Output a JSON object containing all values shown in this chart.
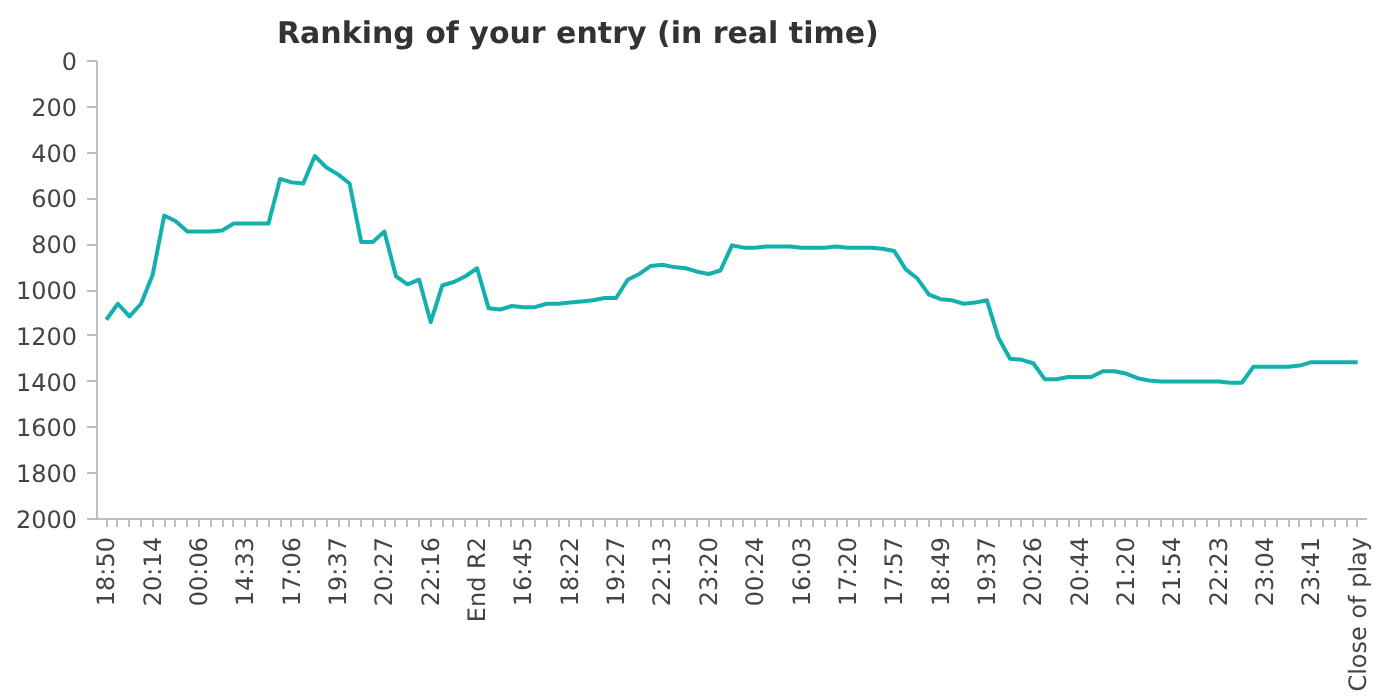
{
  "chart_data": {
    "type": "line",
    "title": "Ranking of your entry (in real time)",
    "categories": [
      "18:50",
      null,
      null,
      null,
      "20:14",
      null,
      null,
      null,
      "00:06",
      null,
      null,
      null,
      "14:33",
      null,
      null,
      null,
      "17:06",
      null,
      null,
      null,
      "19:37",
      null,
      null,
      null,
      "20:27",
      null,
      null,
      null,
      "22:16",
      null,
      null,
      null,
      "End R2",
      null,
      null,
      null,
      "16:45",
      null,
      null,
      null,
      "18:22",
      null,
      null,
      null,
      "19:27",
      null,
      null,
      null,
      "22:13",
      null,
      null,
      null,
      "23:20",
      null,
      null,
      null,
      "00:24",
      null,
      null,
      null,
      "16:03",
      null,
      null,
      null,
      "17:20",
      null,
      null,
      null,
      "17:57",
      null,
      null,
      null,
      "18:49",
      null,
      null,
      null,
      "19:37",
      null,
      null,
      null,
      "20:26",
      null,
      null,
      null,
      "20:44",
      null,
      null,
      null,
      "21:20",
      null,
      null,
      null,
      "21:54",
      null,
      null,
      null,
      "22:23",
      null,
      null,
      null,
      "23:04",
      null,
      null,
      null,
      "23:41",
      null,
      null,
      null,
      "Close of play"
    ],
    "series": [
      {
        "color": "#13b0ae",
        "values": [
          1130,
          1060,
          1115,
          1060,
          935,
          675,
          700,
          745,
          745,
          745,
          740,
          710,
          710,
          710,
          710,
          515,
          530,
          535,
          415,
          465,
          495,
          535,
          790,
          790,
          745,
          940,
          975,
          955,
          1140,
          980,
          965,
          940,
          905,
          1080,
          1085,
          1070,
          1075,
          1075,
          1060,
          1060,
          1055,
          1050,
          1045,
          1035,
          1035,
          955,
          930,
          895,
          890,
          900,
          905,
          920,
          930,
          915,
          805,
          815,
          815,
          810,
          810,
          810,
          815,
          815,
          815,
          810,
          815,
          815,
          815,
          820,
          830,
          910,
          950,
          1020,
          1040,
          1045,
          1060,
          1055,
          1045,
          1210,
          1300,
          1305,
          1320,
          1390,
          1390,
          1380,
          1380,
          1380,
          1355,
          1355,
          1365,
          1385,
          1395,
          1400,
          1400,
          1400,
          1400,
          1400,
          1400,
          1405,
          1405,
          1335,
          1335,
          1335,
          1335,
          1330,
          1315,
          1315,
          1315,
          1315,
          1315
        ]
      }
    ],
    "ylim": [
      2000,
      0
    ],
    "yticks": [
      0,
      200,
      400,
      600,
      800,
      1000,
      1200,
      1400,
      1600,
      1800,
      2000
    ],
    "marker": "none",
    "line_style": "solid"
  }
}
